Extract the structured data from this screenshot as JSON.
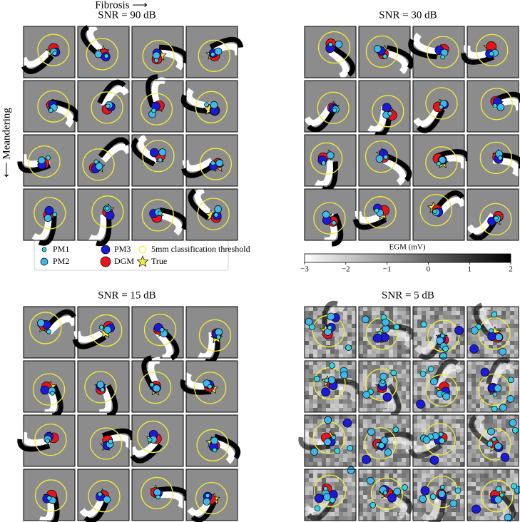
{
  "chart_data": {
    "type": "image-grid",
    "x_label": "Fibrosis ⟶",
    "y_label": "⟵ Meandering",
    "panels": [
      {
        "title": "SNR = 90 dB"
      },
      {
        "title": "SNR = 30 dB"
      },
      {
        "title": "SNR = 15 dB"
      },
      {
        "title": "SNR = 5 dB"
      }
    ],
    "legend": [
      {
        "name": "PM1",
        "color": "#33d3e3"
      },
      {
        "name": "PM2",
        "color": "#3cb8ea"
      },
      {
        "name": "PM3",
        "color": "#1b1bd6"
      },
      {
        "name": "DGM",
        "color": "#e9141b"
      },
      {
        "name": "5mm classification threshold",
        "color": "#f2ec3a"
      },
      {
        "name": "True",
        "color": "#f2ec3a"
      }
    ],
    "colorbar": {
      "label": "EGM (mV)",
      "lim": [
        -3,
        2
      ],
      "ticks": [
        {
          "value": -3,
          "label": "−3"
        },
        {
          "value": -2,
          "label": "−2"
        },
        {
          "value": -1,
          "label": "−1"
        },
        0,
        1,
        2
      ]
    }
  }
}
